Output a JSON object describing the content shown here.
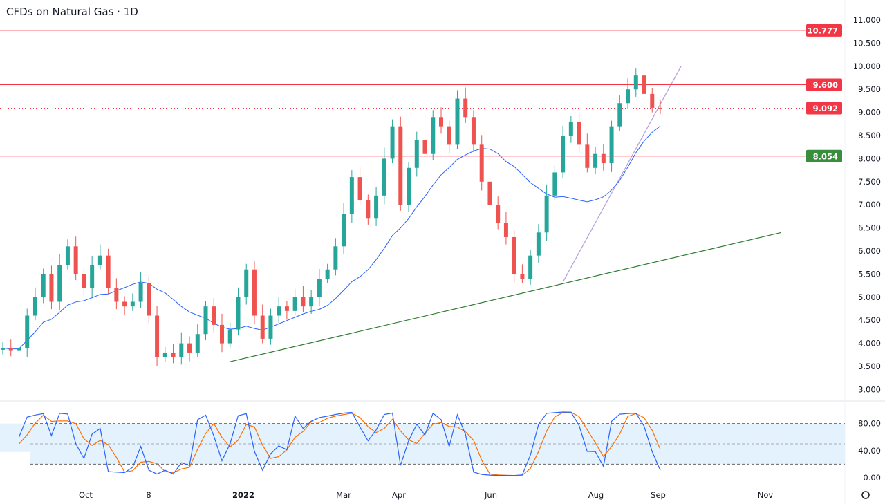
{
  "header": {
    "title": "CFDs on Natural Gas · 1D"
  },
  "colors": {
    "up": "#26a69a",
    "down": "#ef5350",
    "ma": "#2962ff",
    "stoch_k": "#2962ff",
    "stoch_d": "#ff6d00",
    "resistance": "#f23645",
    "support": "#388e3c",
    "trend_up": "#b39ddb",
    "band_fill": "#e3f2fd"
  },
  "chart_data": [
    {
      "type": "candlestick",
      "title": "CFDs on Natural Gas · 1D",
      "y_range": [
        2.8,
        11.1
      ],
      "y_ticks": [
        "11.000",
        "10.500",
        "10.000",
        "9.500",
        "9.000",
        "8.500",
        "8.000",
        "7.500",
        "7.000",
        "6.500",
        "6.000",
        "5.500",
        "5.000",
        "4.500",
        "4.000",
        "3.500",
        "3.000"
      ],
      "x_ticks": [
        "Oct",
        "8",
        "2022",
        "Mar",
        "Apr",
        "Jun",
        "Aug",
        "Sep",
        "Nov"
      ],
      "closes": [
        3.9,
        3.85,
        3.9,
        4.6,
        5.0,
        5.5,
        4.9,
        5.7,
        6.1,
        5.5,
        5.2,
        5.7,
        5.9,
        5.2,
        4.9,
        4.8,
        4.9,
        5.3,
        4.6,
        3.7,
        3.8,
        3.7,
        4.0,
        3.8,
        4.2,
        4.8,
        4.4,
        4.0,
        4.3,
        5.0,
        5.6,
        4.6,
        4.1,
        4.6,
        4.8,
        4.7,
        5.0,
        4.8,
        5.0,
        5.4,
        5.6,
        6.1,
        6.8,
        7.6,
        7.1,
        6.7,
        7.2,
        8.0,
        8.7,
        7.0,
        7.8,
        8.4,
        8.1,
        8.9,
        8.7,
        8.3,
        9.3,
        8.9,
        8.3,
        7.5,
        7.0,
        6.6,
        6.3,
        5.5,
        5.4,
        5.9,
        6.4,
        7.2,
        7.7,
        8.5,
        8.8,
        8.3,
        7.8,
        8.1,
        7.9,
        8.7,
        9.2,
        9.5,
        9.8,
        9.4,
        9.1,
        9.092
      ],
      "moving_average": {
        "color": "#2962ff"
      },
      "horizontal_levels": [
        {
          "value": 10.777,
          "label": "10.777",
          "color": "#f23645",
          "style": "solid"
        },
        {
          "value": 9.6,
          "label": "9.600",
          "color": "#f23645",
          "style": "solid"
        },
        {
          "value": 9.092,
          "label": "9.092",
          "color": "#f23645",
          "style": "dotted"
        },
        {
          "value": 8.054,
          "label": "8.054",
          "color": "#388e3c",
          "style": "solid"
        }
      ],
      "trendlines": [
        {
          "from_price": 3.6,
          "to_price": 6.4,
          "color": "#2e7d32"
        },
        {
          "from_price": 5.35,
          "to_price": 10.0,
          "color": "#b39ddb"
        }
      ]
    },
    {
      "type": "line",
      "title": "",
      "y_range": [
        0,
        100
      ],
      "y_ticks": [
        "80.00",
        "40.00",
        "0.00"
      ],
      "levels": [
        80,
        50,
        20
      ],
      "series": [
        {
          "key": "k",
          "color": "#2962ff"
        },
        {
          "key": "d",
          "color": "#ff6d00"
        }
      ]
    }
  ]
}
